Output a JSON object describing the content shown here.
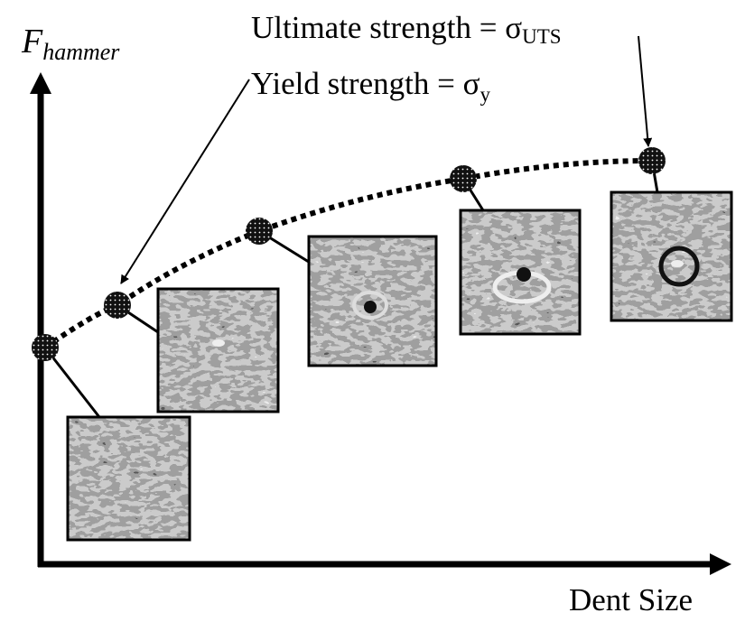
{
  "y_axis_label": {
    "text": "F",
    "subscript": "hammer"
  },
  "x_axis_label": "Dent Size",
  "annotations": [
    {
      "text": "Ultimate strength = σ",
      "subscript": "UTS"
    },
    {
      "text": "Yield strength = σ",
      "subscript": "y"
    }
  ]
}
